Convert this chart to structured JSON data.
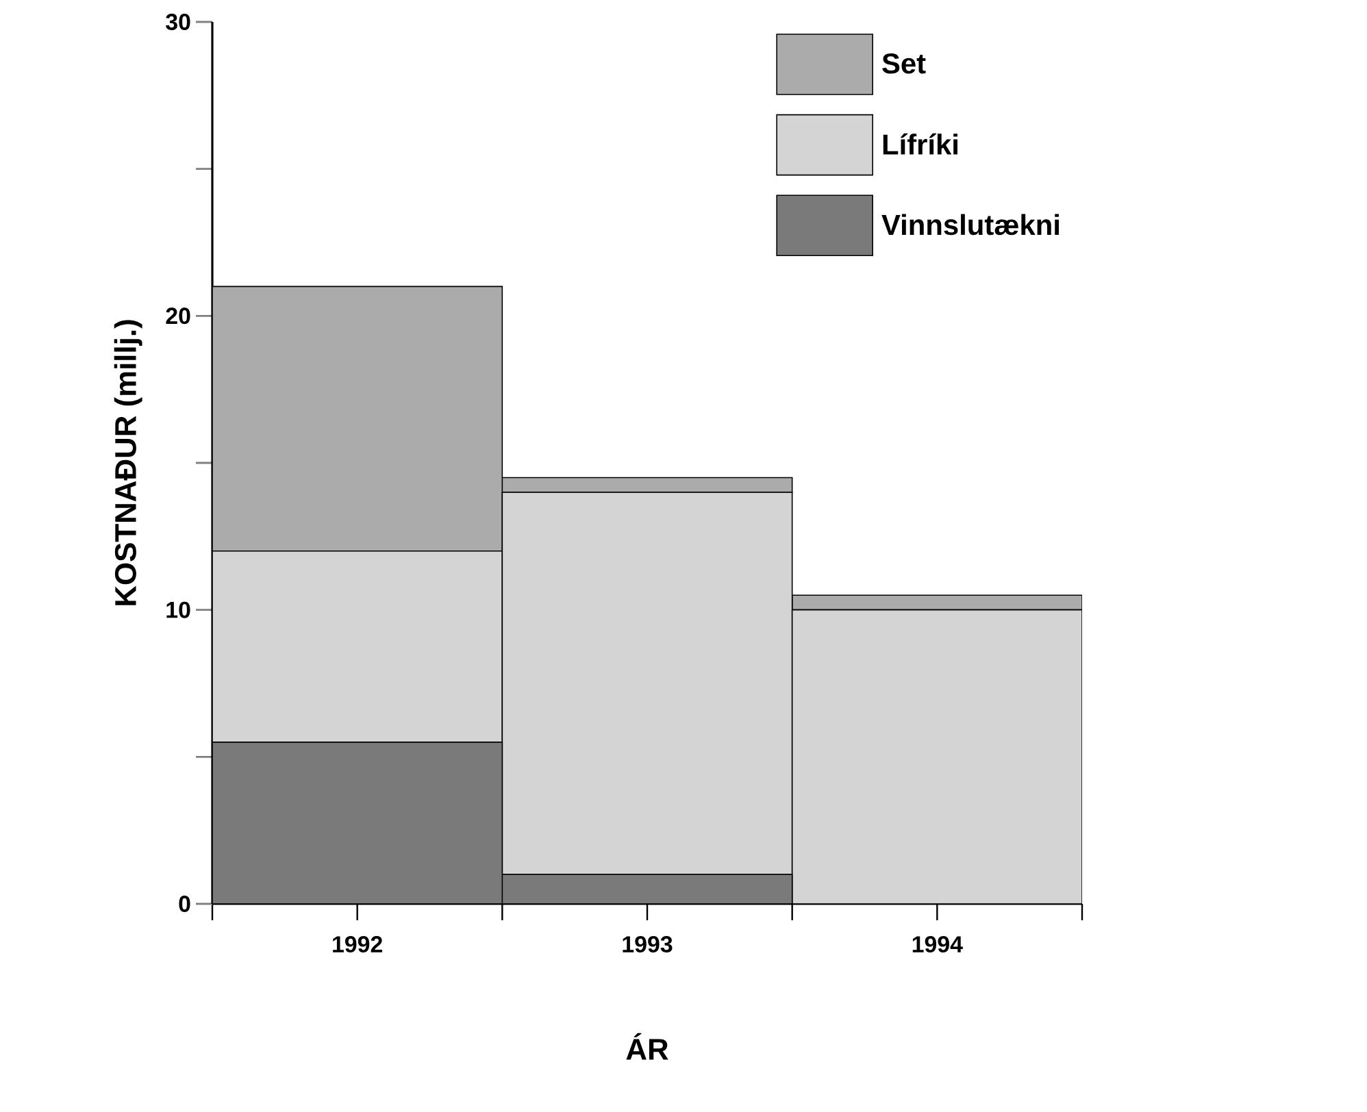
{
  "chart_data": {
    "type": "bar",
    "stacked": true,
    "categories": [
      "1992",
      "1993",
      "1994"
    ],
    "series": [
      {
        "name": "Vinnslutækni",
        "color": "#7a7a7a",
        "values": [
          5.5,
          1,
          0
        ]
      },
      {
        "name": "Lífríki",
        "color": "#d4d4d4",
        "values": [
          6.5,
          13,
          10
        ]
      },
      {
        "name": "Set",
        "color": "#ababab",
        "values": [
          9,
          0.5,
          0.5
        ]
      }
    ],
    "xlabel": "ÁR",
    "ylabel": "KOSTNAÐUR (millj.)",
    "ylim": [
      0,
      30
    ],
    "yticks": [
      0,
      {
        "value": 5,
        "label": null
      },
      10,
      {
        "value": 15,
        "label": null
      },
      20,
      {
        "value": 25,
        "label": null
      },
      30
    ],
    "legend": "top right"
  }
}
